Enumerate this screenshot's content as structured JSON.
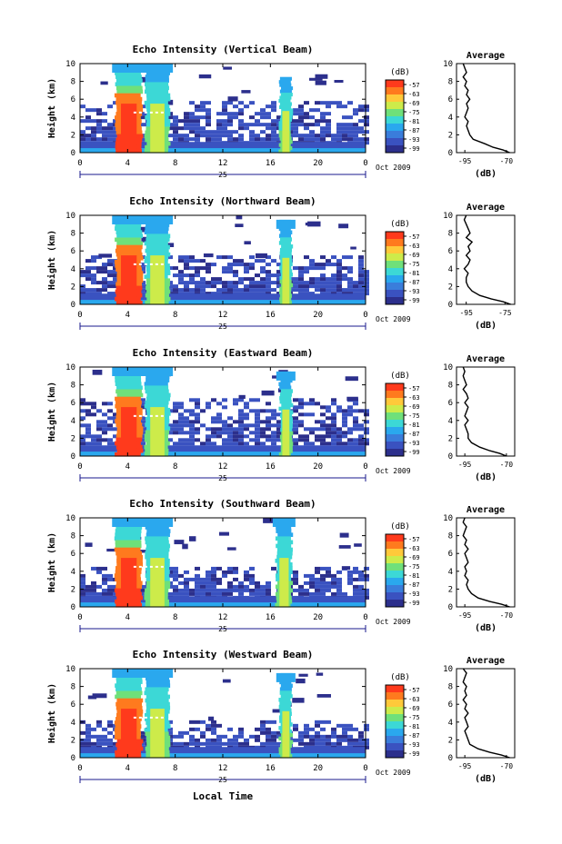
{
  "figure": {
    "x_label": "Local Time",
    "date_label": "Oct 2009",
    "day_label": "25",
    "x_ticks": [
      "0",
      "4",
      "8",
      "12",
      "16",
      "20",
      "0"
    ],
    "y_label": "Height (km)",
    "y_ticks": [
      "0",
      "2",
      "4",
      "6",
      "8",
      "10"
    ],
    "colorbar_unit": "(dB)",
    "colorbar_ticks": [
      "-57",
      "-63",
      "-69",
      "-75",
      "-81",
      "-87",
      "-93",
      "-99"
    ],
    "colorbar_colors": [
      "#ff3a1c",
      "#ff7a1e",
      "#ffc93a",
      "#cdeb4a",
      "#6fe07a",
      "#3cd8d6",
      "#2aa8ee",
      "#3a7ddb",
      "#3a52c0",
      "#2c2f8c"
    ],
    "avg_title": "Average",
    "avg_xlabel": "(dB)"
  },
  "chart_data": [
    {
      "type": "heatmap",
      "title": "Echo Intensity (Vertical Beam)",
      "xlim": [
        0,
        24
      ],
      "ylim": [
        0,
        10
      ],
      "features": [
        {
          "kind": "boundary_layer",
          "top_km": 1.2
        },
        {
          "kind": "scattered_layer",
          "top_km": 5.8,
          "from_h": 0,
          "to_h": 24
        },
        {
          "kind": "cloud_plume",
          "x_h": [
            3,
            5.2
          ],
          "top_km": 10,
          "level_db": -57
        },
        {
          "kind": "cloud_plume",
          "x_h": [
            5.5,
            7.5
          ],
          "top_km": 10,
          "level_db": -75
        },
        {
          "kind": "cloud_plume",
          "x_h": [
            16.8,
            17.8
          ],
          "top_km": 8.5,
          "level_db": -75
        }
      ],
      "average_profile": {
        "x_ticks": [
          "-95",
          "-70"
        ],
        "xlim": [
          -100,
          -65
        ],
        "height_km": [
          0,
          0.3,
          0.6,
          1.0,
          1.5,
          2.0,
          2.5,
          3.0,
          3.5,
          4.0,
          4.5,
          5.0,
          5.5,
          6.0,
          6.5,
          7.0,
          7.5,
          8.0,
          8.5,
          9.0,
          9.5,
          10.0
        ],
        "db": [
          -68,
          -72,
          -78,
          -83,
          -90,
          -92,
          -93,
          -94,
          -93,
          -95,
          -94,
          -93,
          -94,
          -92,
          -94,
          -93,
          -95,
          -94,
          -96,
          -94,
          -95,
          -96
        ]
      }
    },
    {
      "type": "heatmap",
      "title": "Echo Intensity (Northward Beam)",
      "xlim": [
        0,
        24
      ],
      "ylim": [
        0,
        10
      ],
      "features": [
        {
          "kind": "boundary_layer",
          "top_km": 1.2
        },
        {
          "kind": "scattered_layer",
          "top_km": 5.5,
          "from_h": 0,
          "to_h": 24
        },
        {
          "kind": "cloud_plume",
          "x_h": [
            3,
            5.2
          ],
          "top_km": 10,
          "level_db": -57
        },
        {
          "kind": "cloud_plume",
          "x_h": [
            5.5,
            7.5
          ],
          "top_km": 10,
          "level_db": -75
        },
        {
          "kind": "cloud_plume",
          "x_h": [
            16.8,
            17.8
          ],
          "top_km": 9.5,
          "level_db": -75
        }
      ],
      "average_profile": {
        "x_ticks": [
          "-95",
          "-75"
        ],
        "xlim": [
          -100,
          -70
        ],
        "height_km": [
          0,
          0.3,
          0.6,
          1.0,
          1.5,
          2.0,
          2.5,
          3.0,
          3.5,
          4.0,
          4.5,
          5.0,
          5.5,
          6.0,
          6.5,
          7.0,
          7.5,
          8.0,
          8.5,
          9.0,
          9.5,
          10.0
        ],
        "db": [
          -72,
          -76,
          -82,
          -88,
          -92,
          -94,
          -95,
          -95,
          -94,
          -96,
          -94,
          -93,
          -95,
          -93,
          -94,
          -92,
          -95,
          -93,
          -94,
          -95,
          -96,
          -95
        ]
      }
    },
    {
      "type": "heatmap",
      "title": "Echo Intensity (Eastward Beam)",
      "xlim": [
        0,
        24
      ],
      "ylim": [
        0,
        10
      ],
      "features": [
        {
          "kind": "boundary_layer",
          "top_km": 1.2
        },
        {
          "kind": "scattered_layer",
          "top_km": 6.5,
          "from_h": 0,
          "to_h": 24
        },
        {
          "kind": "cloud_plume",
          "x_h": [
            3,
            5.2
          ],
          "top_km": 10,
          "level_db": -57
        },
        {
          "kind": "cloud_plume",
          "x_h": [
            5.5,
            7.5
          ],
          "top_km": 10,
          "level_db": -75
        },
        {
          "kind": "cloud_plume",
          "x_h": [
            16.8,
            17.8
          ],
          "top_km": 9.5,
          "level_db": -75
        }
      ],
      "average_profile": {
        "x_ticks": [
          "-95",
          "-70"
        ],
        "xlim": [
          -100,
          -65
        ],
        "height_km": [
          0,
          0.3,
          0.6,
          1.0,
          1.5,
          2.0,
          2.5,
          3.0,
          3.5,
          4.0,
          4.5,
          5.0,
          5.5,
          6.0,
          6.5,
          7.0,
          7.5,
          8.0,
          8.5,
          9.0,
          9.5,
          10.0
        ],
        "db": [
          -70,
          -74,
          -80,
          -86,
          -91,
          -93,
          -93,
          -94,
          -95,
          -93,
          -95,
          -94,
          -93,
          -95,
          -93,
          -94,
          -96,
          -94,
          -95,
          -96,
          -95,
          -96
        ]
      }
    },
    {
      "type": "heatmap",
      "title": "Echo Intensity (Southward Beam)",
      "xlim": [
        0,
        24
      ],
      "ylim": [
        0,
        10
      ],
      "features": [
        {
          "kind": "boundary_layer",
          "top_km": 1.2
        },
        {
          "kind": "scattered_layer",
          "top_km": 4.5,
          "from_h": 0,
          "to_h": 24
        },
        {
          "kind": "cloud_plume",
          "x_h": [
            3,
            5.2
          ],
          "top_km": 10,
          "level_db": -57
        },
        {
          "kind": "cloud_plume",
          "x_h": [
            5.5,
            7.5
          ],
          "top_km": 10,
          "level_db": -75
        },
        {
          "kind": "cloud_plume",
          "x_h": [
            16.5,
            17.8
          ],
          "top_km": 10,
          "level_db": -75
        }
      ],
      "average_profile": {
        "x_ticks": [
          "-95",
          "-70"
        ],
        "xlim": [
          -100,
          -65
        ],
        "height_km": [
          0,
          0.3,
          0.6,
          1.0,
          1.5,
          2.0,
          2.5,
          3.0,
          3.5,
          4.0,
          4.5,
          5.0,
          5.5,
          6.0,
          6.5,
          7.0,
          7.5,
          8.0,
          8.5,
          9.0,
          9.5,
          10.0
        ],
        "db": [
          -68,
          -73,
          -80,
          -87,
          -91,
          -93,
          -94,
          -93,
          -95,
          -94,
          -95,
          -93,
          -94,
          -95,
          -93,
          -95,
          -94,
          -96,
          -95,
          -94,
          -96,
          -95
        ]
      }
    },
    {
      "type": "heatmap",
      "title": "Echo Intensity (Westward Beam)",
      "xlim": [
        0,
        24
      ],
      "ylim": [
        0,
        10
      ],
      "features": [
        {
          "kind": "boundary_layer",
          "top_km": 1.2
        },
        {
          "kind": "scattered_layer",
          "top_km": 4.2,
          "from_h": 0,
          "to_h": 24
        },
        {
          "kind": "cloud_plume",
          "x_h": [
            3,
            5.2
          ],
          "top_km": 10,
          "level_db": -57
        },
        {
          "kind": "cloud_plume",
          "x_h": [
            5.5,
            7.5
          ],
          "top_km": 10,
          "level_db": -75
        },
        {
          "kind": "cloud_plume",
          "x_h": [
            16.8,
            17.8
          ],
          "top_km": 9.5,
          "level_db": -75
        }
      ],
      "average_profile": {
        "x_ticks": [
          "-95",
          "-70"
        ],
        "xlim": [
          -100,
          -65
        ],
        "height_km": [
          0,
          0.3,
          0.6,
          1.0,
          1.5,
          2.0,
          2.5,
          3.0,
          3.5,
          4.0,
          4.5,
          5.0,
          5.5,
          6.0,
          6.5,
          7.0,
          7.5,
          8.0,
          8.5,
          9.0,
          9.5,
          10.0
        ],
        "db": [
          -68,
          -73,
          -80,
          -87,
          -92,
          -93,
          -94,
          -95,
          -93,
          -94,
          -95,
          -93,
          -95,
          -94,
          -96,
          -94,
          -95,
          -94,
          -96,
          -95,
          -94,
          -96
        ]
      }
    }
  ]
}
